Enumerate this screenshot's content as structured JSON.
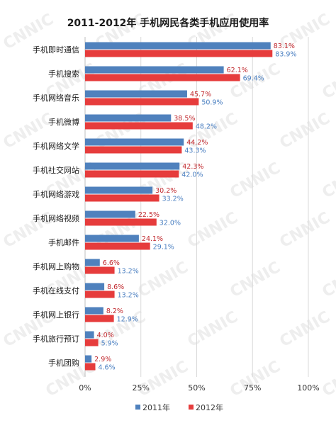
{
  "chart_data": {
    "type": "bar",
    "orientation": "horizontal",
    "title": "2011-2012年 手机网民各类手机应用使用率",
    "categories": [
      "手机即时通信",
      "手机搜索",
      "手机网络音乐",
      "手机微博",
      "手机网络文学",
      "手机社交网站",
      "手机网络游戏",
      "手机网络视频",
      "手机邮件",
      "手机网上购物",
      "手机在线支付",
      "手机网上银行",
      "手机旅行预订",
      "手机团购"
    ],
    "series": [
      {
        "name": "2011年",
        "color": "#4F81BD",
        "label_color": "#3E6FB5",
        "values": [
          83.1,
          62.1,
          45.7,
          38.5,
          44.2,
          42.3,
          30.2,
          22.5,
          24.1,
          6.6,
          8.6,
          8.2,
          4.0,
          2.9
        ],
        "labels": [
          "83.1%",
          "62.1%",
          "45.7%",
          "38.5%",
          "44.2%",
          "42.3%",
          "30.2%",
          "22.5%",
          "24.1%",
          "6.6%",
          "8.6%",
          "8.2%",
          "4.0%",
          "2.9%"
        ]
      },
      {
        "name": "2012年",
        "color": "#E63C3C",
        "label_color": "#4A7FC1",
        "values": [
          83.9,
          69.4,
          50.9,
          48.2,
          43.3,
          42.0,
          33.2,
          32.0,
          29.1,
          13.2,
          13.2,
          12.9,
          5.9,
          4.6
        ],
        "labels": [
          "83.9%",
          "69.4%",
          "50.9%",
          "48.2%",
          "43.3%",
          "42.0%",
          "33.2%",
          "32.0%",
          "29.1%",
          "13.2%",
          "13.2%",
          "12.9%",
          "5.9%",
          "4.6%"
        ]
      }
    ],
    "label_top_color": "#C0282D",
    "xlim": [
      0,
      100
    ],
    "xticks": [
      "0%",
      "25%",
      "50%",
      "75%",
      "100%"
    ],
    "grid": true,
    "legend_position": "bottom",
    "legend": [
      "2011年",
      "2012年"
    ],
    "watermark": "CNNIC"
  }
}
